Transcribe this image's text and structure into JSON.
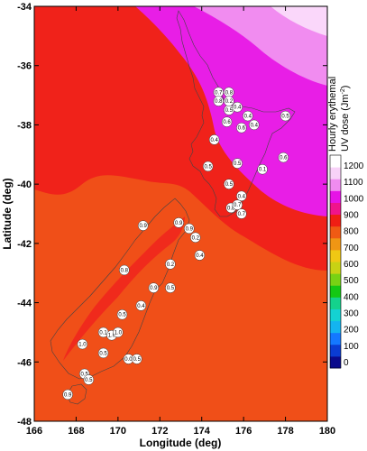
{
  "chart_data": {
    "type": "map-contour",
    "xlabel": "Longitude (deg)",
    "ylabel": "Latitude (deg)",
    "xlim": [
      166,
      180
    ],
    "ylim": [
      -48,
      -34
    ],
    "x_ticks": [
      "166",
      "168",
      "170",
      "172",
      "174",
      "176",
      "178",
      "180"
    ],
    "y_ticks": [
      "-34",
      "-36",
      "-38",
      "-40",
      "-42",
      "-44",
      "-46",
      "-48"
    ],
    "colorbar": {
      "title_line1": "Hourly erythemal",
      "title_line2": "UV dose (Jm",
      "title_sup": "-2",
      "title_end": ")",
      "levels": [
        "0",
        "100",
        "200",
        "300",
        "400",
        "500",
        "600",
        "700",
        "800",
        "900",
        "1000",
        "1100",
        "1200"
      ],
      "colors": [
        "#0a0a8c",
        "#0a3cd2",
        "#1478ff",
        "#14b4f0",
        "#14d2d2",
        "#14d28c",
        "#14c814",
        "#78d214",
        "#c8d214",
        "#f0c814",
        "#f09614",
        "#f05a14",
        "#f01e14",
        "#f0148c",
        "#e614e6",
        "#f08cf0",
        "#f8d2f8",
        "#ffffff"
      ]
    },
    "markers": [
      {
        "lon": 174.8,
        "lat": -36.9,
        "label": "0.7"
      },
      {
        "lon": 174.8,
        "lat": -37.2,
        "label": "0.8"
      },
      {
        "lon": 175.3,
        "lat": -36.9,
        "label": "0.8"
      },
      {
        "lon": 175.3,
        "lat": -37.5,
        "label": "0.5"
      },
      {
        "lon": 175.3,
        "lat": -37.2,
        "label": "0.2"
      },
      {
        "lon": 175.7,
        "lat": -37.4,
        "label": "0.4"
      },
      {
        "lon": 175.2,
        "lat": -37.9,
        "label": "0.6"
      },
      {
        "lon": 176.2,
        "lat": -37.7,
        "label": "0.4"
      },
      {
        "lon": 175.9,
        "lat": -38.1,
        "label": "0.6"
      },
      {
        "lon": 176.5,
        "lat": -38.0,
        "label": "0.4"
      },
      {
        "lon": 178.0,
        "lat": -37.7,
        "label": "0.5"
      },
      {
        "lon": 174.6,
        "lat": -38.5,
        "label": "0.4"
      },
      {
        "lon": 174.3,
        "lat": -39.4,
        "label": "0.5"
      },
      {
        "lon": 175.7,
        "lat": -39.3,
        "label": "0.5"
      },
      {
        "lon": 176.9,
        "lat": -39.5,
        "label": "0.1"
      },
      {
        "lon": 177.9,
        "lat": -39.1,
        "label": "0.6"
      },
      {
        "lon": 175.3,
        "lat": -40.0,
        "label": "0.5"
      },
      {
        "lon": 175.9,
        "lat": -40.4,
        "label": "0.4"
      },
      {
        "lon": 175.4,
        "lat": -40.8,
        "label": "0.8"
      },
      {
        "lon": 175.7,
        "lat": -40.7,
        "label": "0.7"
      },
      {
        "lon": 175.9,
        "lat": -41.0,
        "label": "0.7"
      },
      {
        "lon": 171.2,
        "lat": -41.4,
        "label": "0.9"
      },
      {
        "lon": 172.9,
        "lat": -41.3,
        "label": "0.9"
      },
      {
        "lon": 173.4,
        "lat": -41.5,
        "label": "0.9"
      },
      {
        "lon": 173.7,
        "lat": -41.8,
        "label": "0.2"
      },
      {
        "lon": 170.3,
        "lat": -42.9,
        "label": "0.8"
      },
      {
        "lon": 172.5,
        "lat": -42.7,
        "label": "0.2"
      },
      {
        "lon": 173.9,
        "lat": -42.4,
        "label": "0.4"
      },
      {
        "lon": 171.7,
        "lat": -43.5,
        "label": "0.9"
      },
      {
        "lon": 172.5,
        "lat": -43.5,
        "label": "0.5"
      },
      {
        "lon": 171.1,
        "lat": -44.1,
        "label": "0.4"
      },
      {
        "lon": 170.2,
        "lat": -44.4,
        "label": "0.5"
      },
      {
        "lon": 169.3,
        "lat": -45.0,
        "label": "0.1"
      },
      {
        "lon": 169.7,
        "lat": -45.1,
        "label": "1.0"
      },
      {
        "lon": 170.0,
        "lat": -45.0,
        "label": "1.0"
      },
      {
        "lon": 168.3,
        "lat": -45.4,
        "label": "1.0"
      },
      {
        "lon": 169.3,
        "lat": -45.7,
        "label": "0.5"
      },
      {
        "lon": 170.5,
        "lat": -45.9,
        "label": "0.0"
      },
      {
        "lon": 170.9,
        "lat": -45.9,
        "label": "0.5"
      },
      {
        "lon": 168.4,
        "lat": -46.4,
        "label": "0.5"
      },
      {
        "lon": 168.6,
        "lat": -46.6,
        "label": "0.5"
      },
      {
        "lon": 167.6,
        "lat": -47.1,
        "label": "0.9"
      }
    ]
  }
}
